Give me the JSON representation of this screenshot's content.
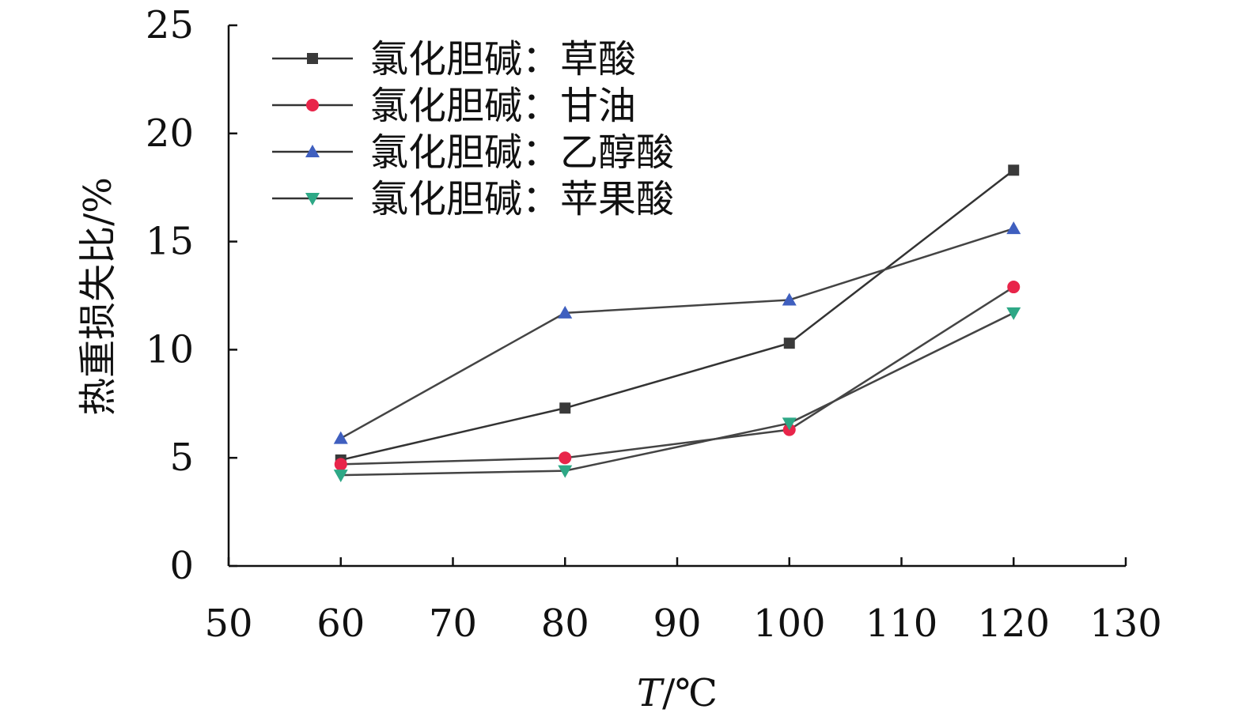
{
  "chart_data": {
    "type": "line",
    "title": "",
    "xlabel": "T/℃",
    "ylabel": "热重损失比/%",
    "xlim": [
      50,
      130
    ],
    "ylim": [
      0,
      25
    ],
    "xticks": [
      50,
      60,
      70,
      80,
      90,
      100,
      110,
      120,
      130
    ],
    "yticks": [
      0,
      5,
      10,
      15,
      20,
      25
    ],
    "grid": false,
    "legend_position": "top-left",
    "series": [
      {
        "name": "氯化胆碱：草酸",
        "color": "#3a3a3a",
        "marker": "square",
        "x": [
          60,
          80,
          100,
          120
        ],
        "y": [
          4.9,
          7.3,
          10.3,
          18.3
        ]
      },
      {
        "name": "氯化胆碱：甘油",
        "color": "#e8254a",
        "marker": "circle",
        "x": [
          60,
          80,
          100,
          120
        ],
        "y": [
          4.7,
          5.0,
          6.3,
          12.9
        ]
      },
      {
        "name": "氯化胆碱：乙醇酸",
        "color": "#3f5fbf",
        "marker": "triangle-up",
        "x": [
          60,
          80,
          100,
          120
        ],
        "y": [
          5.9,
          11.7,
          12.3,
          15.6
        ]
      },
      {
        "name": "氯化胆碱：苹果酸",
        "color": "#2ea886",
        "marker": "triangle-down",
        "x": [
          60,
          80,
          100,
          120
        ],
        "y": [
          4.2,
          4.4,
          6.6,
          11.7
        ]
      }
    ]
  }
}
